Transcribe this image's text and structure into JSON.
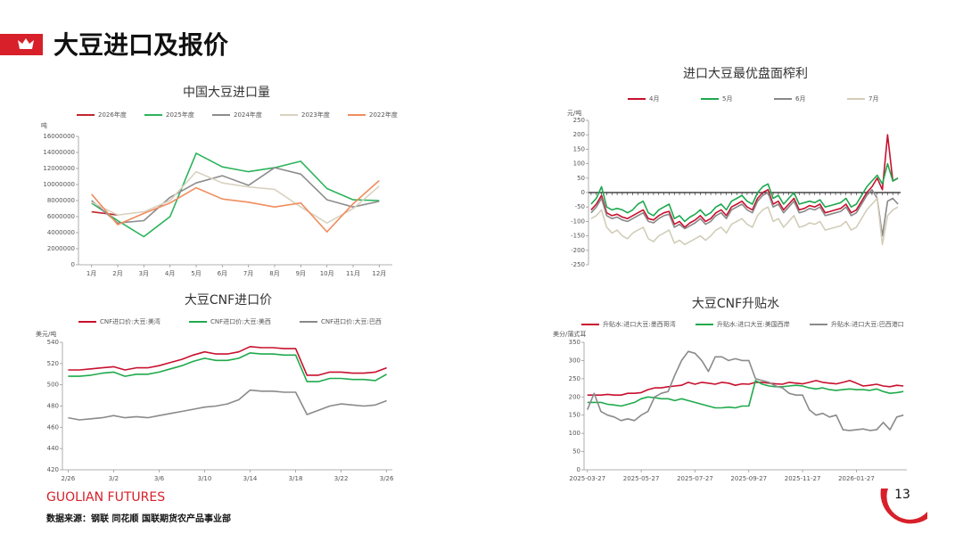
{
  "header": {
    "title": "大豆进口及报价"
  },
  "footer": {
    "brand": "GUOLIAN FUTURES",
    "source": "数据来源：钢联 同花顺 国联期货农产品事业部",
    "page": "13"
  },
  "chart_data": [
    {
      "type": "line",
      "title": "中国大豆进口量",
      "y_label": "吨",
      "legend": "top",
      "x_axis_at_zero": false,
      "categories": [
        "1月",
        "2月",
        "3月",
        "4月",
        "5月",
        "6月",
        "7月",
        "8月",
        "9月",
        "10月",
        "11月",
        "12月"
      ],
      "ylim": [
        0,
        16000000
      ],
      "yticks": [
        0,
        2000000,
        4000000,
        6000000,
        8000000,
        10000000,
        12000000,
        14000000,
        16000000
      ],
      "series": [
        {
          "name": "2026年度",
          "color": "#c0262d",
          "values": [
            6600000,
            6200000,
            null,
            null,
            null,
            null,
            null,
            null,
            null,
            null,
            null,
            null
          ]
        },
        {
          "name": "2025年度",
          "color": "#2bb35a",
          "values": [
            7700000,
            5500000,
            3500000,
            6000000,
            13900000,
            12200000,
            11600000,
            12100000,
            12900000,
            9500000,
            8100000,
            8000000
          ]
        },
        {
          "name": "2024年度",
          "color": "#8c8c8c",
          "values": [
            8000000,
            5200000,
            5500000,
            8400000,
            10200000,
            11100000,
            9900000,
            12100000,
            11300000,
            8100000,
            7200000,
            7900000
          ]
        },
        {
          "name": "2023年度",
          "color": "#d9d2bf",
          "values": [
            7800000,
            6200000,
            6600000,
            8000000,
            11600000,
            10200000,
            9700000,
            9400000,
            7200000,
            5200000,
            7000000,
            9800000
          ]
        },
        {
          "name": "2022年度",
          "color": "#f08d5e",
          "values": [
            8800000,
            5000000,
            6400000,
            7700000,
            9600000,
            8200000,
            7800000,
            7200000,
            7700000,
            4100000,
            7600000,
            10500000
          ]
        }
      ]
    },
    {
      "type": "line",
      "title": "进口大豆最优盘面榨利",
      "y_label": "元/吨",
      "legend": "top",
      "x_axis_at_zero": true,
      "categories": [
        null,
        null,
        null,
        null,
        null,
        null,
        null,
        null,
        null,
        null,
        null,
        null,
        null,
        null,
        null,
        null,
        null,
        null,
        null,
        null,
        null,
        null,
        null,
        null,
        null,
        null,
        null,
        null,
        null,
        null,
        null,
        null,
        null,
        null,
        null,
        null,
        null,
        null,
        null,
        null,
        null,
        null,
        null,
        null,
        null,
        null,
        null,
        null,
        null,
        null,
        null,
        null,
        null,
        null,
        null,
        null,
        null,
        null,
        null,
        null
      ],
      "ylim": [
        -250,
        250
      ],
      "yticks": [
        -250,
        -200,
        -150,
        -100,
        -50,
        0,
        50,
        100,
        150,
        200,
        250
      ],
      "series": [
        {
          "name": "4月",
          "color": "#c8102e",
          "values": [
            -60,
            -40,
            -10,
            -70,
            -80,
            -75,
            -85,
            -90,
            -80,
            -70,
            -60,
            -90,
            -95,
            -80,
            -70,
            -65,
            -110,
            -100,
            -120,
            -105,
            -95,
            -80,
            -100,
            -90,
            -70,
            -60,
            -80,
            -50,
            -40,
            -30,
            -50,
            -60,
            -20,
            0,
            10,
            -40,
            -30,
            -60,
            -40,
            -20,
            -60,
            -55,
            -45,
            -50,
            -40,
            -70,
            -65,
            -60,
            -55,
            -40,
            -70,
            -60,
            -30,
            0,
            20,
            50,
            10,
            200,
            40,
            50
          ]
        },
        {
          "name": "5月",
          "color": "#1ea84f",
          "values": [
            -40,
            -20,
            20,
            -50,
            -60,
            -55,
            -60,
            -70,
            -60,
            -40,
            -30,
            -70,
            -80,
            -60,
            -50,
            -40,
            -90,
            -80,
            -100,
            -85,
            -75,
            -60,
            -80,
            -70,
            -50,
            -40,
            -60,
            -30,
            -20,
            -10,
            -30,
            -40,
            0,
            20,
            30,
            -20,
            -10,
            -40,
            -20,
            0,
            -40,
            -35,
            -30,
            -35,
            -25,
            -50,
            -45,
            -40,
            -35,
            -20,
            -50,
            -40,
            -10,
            20,
            40,
            60,
            30,
            100,
            40,
            50
          ]
        },
        {
          "name": "6月",
          "color": "#888888",
          "values": [
            -70,
            -50,
            -20,
            -80,
            -90,
            -85,
            -95,
            -100,
            -90,
            -80,
            -70,
            -100,
            -105,
            -90,
            -80,
            -75,
            -120,
            -110,
            -125,
            -115,
            -105,
            -90,
            -110,
            -100,
            -80,
            -70,
            -90,
            -60,
            -50,
            -40,
            -60,
            -70,
            -30,
            -10,
            0,
            -50,
            -40,
            -70,
            -50,
            -30,
            -70,
            -65,
            -55,
            -60,
            -50,
            -80,
            -75,
            -70,
            -65,
            -50,
            -80,
            -70,
            -40,
            -10,
            10,
            -20,
            -150,
            -30,
            -20,
            -40
          ]
        },
        {
          "name": "7月",
          "color": "#d2cdb8",
          "values": [
            -90,
            -80,
            -60,
            -120,
            -140,
            -130,
            -150,
            -160,
            -140,
            -130,
            -120,
            -160,
            -170,
            -150,
            -140,
            -130,
            -175,
            -165,
            -180,
            -170,
            -160,
            -150,
            -165,
            -150,
            -130,
            -120,
            -140,
            -110,
            -100,
            -90,
            -110,
            -120,
            -80,
            -60,
            -50,
            -100,
            -90,
            -120,
            -100,
            -80,
            -120,
            -115,
            -105,
            -110,
            -100,
            -130,
            -125,
            -120,
            -115,
            -100,
            -130,
            -120,
            -90,
            -60,
            -40,
            -20,
            -180,
            -80,
            -60,
            -50
          ]
        }
      ]
    },
    {
      "type": "line",
      "title": "大豆CNF进口价",
      "y_label": "美元/吨",
      "legend": "top",
      "x_axis_at_zero": false,
      "categories": [
        "2/26",
        null,
        null,
        null,
        "3/2",
        null,
        null,
        null,
        "3/6",
        null,
        null,
        null,
        "3/10",
        null,
        null,
        null,
        "3/14",
        null,
        null,
        null,
        "3/18",
        null,
        null,
        null,
        "3/22",
        null,
        null,
        null,
        "3/26"
      ],
      "ylim": [
        420,
        540
      ],
      "yticks": [
        420,
        440,
        460,
        480,
        500,
        520,
        540
      ],
      "series": [
        {
          "name": "CNF进口价:大豆:美湾",
          "color": "#c8102e",
          "values": [
            514,
            514,
            515,
            516,
            517,
            514,
            516,
            516,
            518,
            521,
            524,
            528,
            531,
            529,
            529,
            531,
            536,
            535,
            535,
            534,
            534,
            509,
            509,
            512,
            512,
            511,
            511,
            512,
            516
          ]
        },
        {
          "name": "CNF进口价:大豆:美西",
          "color": "#1faa4c",
          "values": [
            508,
            508,
            509,
            511,
            512,
            508,
            510,
            510,
            512,
            515,
            518,
            522,
            525,
            523,
            523,
            525,
            530,
            529,
            529,
            528,
            528,
            503,
            503,
            506,
            506,
            505,
            505,
            504,
            510
          ]
        },
        {
          "name": "CNF进口价:大豆:巴西",
          "color": "#8a8a8a",
          "values": [
            469,
            467,
            468,
            469,
            471,
            469,
            470,
            469,
            471,
            473,
            475,
            477,
            479,
            480,
            482,
            486,
            495,
            494,
            494,
            493,
            493,
            472,
            476,
            480,
            482,
            481,
            480,
            481,
            485
          ]
        }
      ]
    },
    {
      "type": "line",
      "title": "大豆CNF升贴水",
      "y_label": "美分/蒲式耳",
      "legend": "top",
      "x_axis_at_zero": false,
      "categories": [
        "2025-03-27",
        null,
        null,
        null,
        null,
        null,
        null,
        null,
        "2025-05-27",
        null,
        null,
        null,
        null,
        null,
        null,
        null,
        "2025-07-27",
        null,
        null,
        null,
        null,
        null,
        null,
        null,
        "2025-09-27",
        null,
        null,
        null,
        null,
        null,
        null,
        null,
        "2025-11-27",
        null,
        null,
        null,
        null,
        null,
        null,
        null,
        "2026-01-27",
        null,
        null,
        null,
        null,
        null,
        null,
        null
      ],
      "ylim": [
        0,
        350
      ],
      "yticks": [
        0,
        50,
        100,
        150,
        200,
        250,
        300,
        350
      ],
      "series": [
        {
          "name": "升贴水:进口大豆:墨西哥湾",
          "color": "#c8102e",
          "values": [
            205,
            205,
            205,
            207,
            205,
            205,
            210,
            210,
            212,
            220,
            225,
            225,
            228,
            230,
            232,
            240,
            235,
            240,
            238,
            235,
            240,
            238,
            232,
            236,
            235,
            240,
            240,
            238,
            236,
            235,
            240,
            238,
            236,
            240,
            245,
            240,
            238,
            236,
            240,
            245,
            238,
            230,
            232,
            235,
            230,
            228,
            232,
            230
          ]
        },
        {
          "name": "升贴水:进口大豆:美国西岸",
          "color": "#1faa4c",
          "values": [
            185,
            185,
            185,
            180,
            178,
            175,
            180,
            185,
            195,
            200,
            198,
            195,
            195,
            190,
            195,
            190,
            185,
            180,
            175,
            170,
            170,
            172,
            170,
            175,
            175,
            245,
            235,
            230,
            228,
            228,
            230,
            232,
            230,
            225,
            222,
            225,
            220,
            218,
            220,
            222,
            220,
            220,
            218,
            222,
            215,
            210,
            212,
            215
          ]
        },
        {
          "name": "升贴水:进口大豆:巴西港口",
          "color": "#8a8a8a",
          "values": [
            165,
            210,
            160,
            150,
            145,
            135,
            140,
            135,
            150,
            160,
            200,
            210,
            215,
            260,
            300,
            325,
            320,
            300,
            270,
            310,
            310,
            300,
            305,
            300,
            300,
            250,
            245,
            240,
            230,
            225,
            210,
            205,
            205,
            165,
            150,
            155,
            145,
            150,
            110,
            108,
            110,
            112,
            108,
            110,
            130,
            110,
            145,
            150
          ]
        }
      ]
    }
  ]
}
